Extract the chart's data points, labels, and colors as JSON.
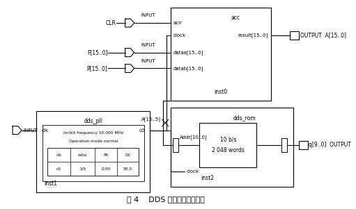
{
  "title": "图 4    DDS 的核心电路模块图",
  "bg_color": "#ffffff",
  "line_color": "#000000",
  "table_headers": [
    "clk",
    "ratio",
    "Ph",
    "DC"
  ],
  "table_row": [
    "c0",
    "1/5",
    "0.00",
    "50.0"
  ],
  "pll_line1": "Inclk0 frequency 50.000 MHz",
  "pll_line2": "Operation mode normal",
  "output_a_label": "OUTPUT  A[15..0]",
  "q_output_label": "q[9..0]  OUTPUT",
  "a155_label": "A[15..5]",
  "acc_ports_left": [
    "aclr",
    "clock",
    "dataa[15..0]",
    "datab[15..0]"
  ],
  "acc_port_right": "result[15..0]",
  "acc_label": "acc",
  "acc_inst": "inst0",
  "rom_label": "dds_rom",
  "rom_inst": "inst2",
  "rom_inner1": "10 b/s",
  "rom_inner2": "2 048 words",
  "rom_port_left": "Addr[10..0]",
  "rom_port_bottom": "clock",
  "pll_label": "dds_pll",
  "pll_inst": "inst1",
  "pll_port_left": "clk",
  "pll_port_right": "c0",
  "clr_label": "CLR",
  "f_label": "F[15..0]",
  "p_label": "P[15..0]",
  "input_label": "INPUT"
}
